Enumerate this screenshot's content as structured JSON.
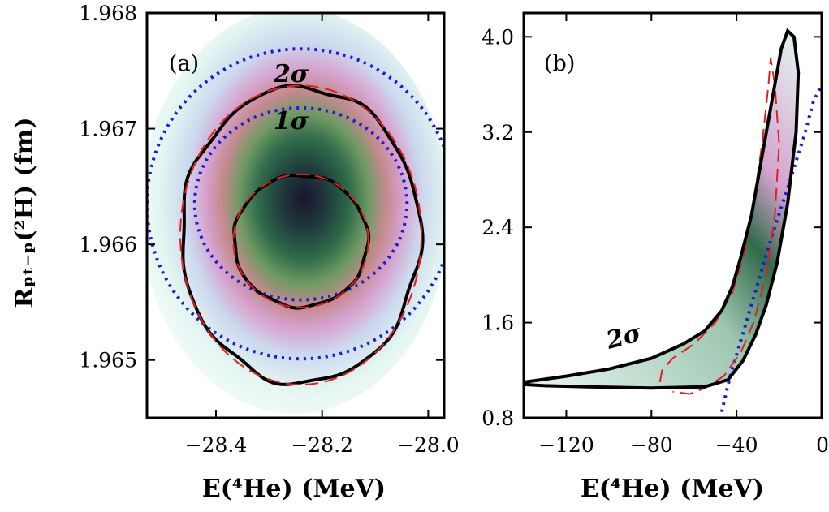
{
  "chart_data": [
    {
      "panel_label": "(a)",
      "type": "heatmap",
      "xlabel": "E(⁴He) (MeV)",
      "ylabel": "Rₚₜ₋ₚ(²H) (fm)",
      "xlim": [
        -28.53,
        -27.97
      ],
      "ylim": [
        1.9645,
        1.968
      ],
      "xticks": [
        -28.4,
        -28.2,
        -28.0
      ],
      "xtick_labels": [
        "−28.4",
        "−28.2",
        "−28.0"
      ],
      "yticks": [
        1.965,
        1.966,
        1.967,
        1.968
      ],
      "ytick_labels": [
        "1.965",
        "1.966",
        "1.967",
        "1.968"
      ],
      "density_peak": {
        "x": -28.24,
        "y": 1.96637
      },
      "colors": {
        "heatmap": [
          "#ffffff",
          "#e3f6f1",
          "#ccd8ee",
          "#d6a3cf",
          "#cf8aa0",
          "#6f9a63",
          "#2f6b4a",
          "#1a1430"
        ],
        "contour": "#000000",
        "dashed": "#e02020",
        "dotted": "#1a1adc"
      },
      "contours": [
        {
          "label": "1σ",
          "center": [
            -28.24,
            1.96603
          ],
          "radii": [
            0.126,
            0.00057
          ]
        },
        {
          "label": "2σ",
          "center": [
            -28.24,
            1.96608
          ],
          "radii": [
            0.225,
            0.00128
          ]
        }
      ],
      "dotted_curves": [
        {
          "center": [
            -28.24,
            1.96635
          ],
          "radii": [
            0.2,
            0.00083
          ]
        },
        {
          "center": [
            -28.24,
            1.96635
          ],
          "radii": [
            0.29,
            0.00134
          ]
        }
      ]
    },
    {
      "panel_label": "(b)",
      "type": "heatmap",
      "xlabel": "E(⁴He) (MeV)",
      "xlim": [
        -140,
        0
      ],
      "ylim": [
        0.8,
        4.2
      ],
      "xticks": [
        -120,
        -80,
        -40,
        0
      ],
      "xtick_labels": [
        "−120",
        "−80",
        "−40",
        "0"
      ],
      "yticks": [
        0.8,
        1.6,
        2.4,
        3.2,
        4.0
      ],
      "ytick_labels": [
        "0.8",
        "1.6",
        "2.4",
        "3.2",
        "4.0"
      ],
      "density_peak": {
        "x": -32,
        "y": 1.8
      },
      "contours": [
        {
          "label": "2σ",
          "points": [
            [
              -140,
              1.1
            ],
            [
              -120,
              1.15
            ],
            [
              -100,
              1.21
            ],
            [
              -80,
              1.3
            ],
            [
              -65,
              1.42
            ],
            [
              -55,
              1.53
            ],
            [
              -47,
              1.7
            ],
            [
              -42,
              1.9
            ],
            [
              -38,
              2.15
            ],
            [
              -33,
              2.5
            ],
            [
              -28,
              3.0
            ],
            [
              -23,
              3.5
            ],
            [
              -19,
              3.9
            ],
            [
              -16,
              4.05
            ],
            [
              -13,
              4.0
            ],
            [
              -11,
              3.7
            ],
            [
              -12,
              3.2
            ],
            [
              -16,
              2.6
            ],
            [
              -21,
              2.1
            ],
            [
              -26,
              1.75
            ],
            [
              -31,
              1.5
            ],
            [
              -37,
              1.28
            ],
            [
              -44,
              1.12
            ],
            [
              -55,
              1.06
            ],
            [
              -80,
              1.05
            ],
            [
              -110,
              1.06
            ],
            [
              -130,
              1.07
            ],
            [
              -140,
              1.08
            ]
          ]
        }
      ],
      "dashed_curve": [
        [
          -76,
          1.1
        ],
        [
          -75,
          1.2
        ],
        [
          -70,
          1.3
        ],
        [
          -60,
          1.42
        ],
        [
          -50,
          1.6
        ],
        [
          -42,
          1.85
        ],
        [
          -36,
          2.2
        ],
        [
          -32,
          2.6
        ],
        [
          -28,
          3.1
        ],
        [
          -25,
          3.6
        ],
        [
          -24,
          3.82
        ],
        [
          -22,
          3.6
        ],
        [
          -20,
          3.1
        ],
        [
          -22,
          2.5
        ],
        [
          -26,
          2.0
        ],
        [
          -32,
          1.6
        ],
        [
          -38,
          1.35
        ],
        [
          -46,
          1.15
        ],
        [
          -55,
          1.05
        ],
        [
          -62,
          1.0
        ],
        [
          -70,
          1.02
        ]
      ],
      "dotted_curve": [
        [
          -47,
          0.85
        ],
        [
          -43,
          1.15
        ],
        [
          -38,
          1.45
        ],
        [
          -33,
          1.75
        ],
        [
          -28,
          2.05
        ],
        [
          -23,
          2.35
        ],
        [
          -18,
          2.62
        ],
        [
          -13,
          2.9
        ],
        [
          -8,
          3.18
        ],
        [
          -4,
          3.45
        ],
        [
          0,
          3.6
        ]
      ]
    }
  ]
}
